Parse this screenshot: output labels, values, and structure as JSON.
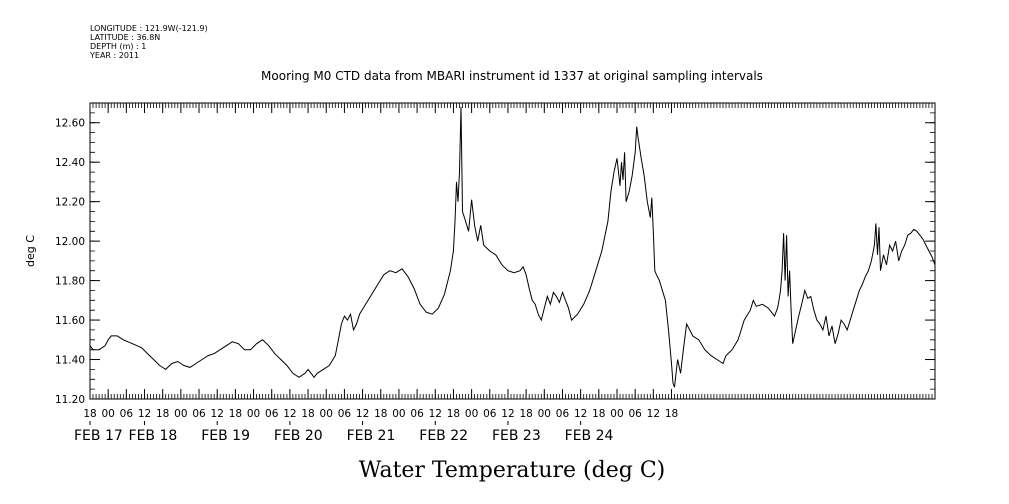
{
  "header": {
    "longitude": "LONGITUDE : 121.9W(-121.9)",
    "latitude": "LATITUDE : 36.8N",
    "depth": "DEPTH (m) : 1",
    "year": "YEAR : 2011"
  },
  "chart_data": {
    "type": "line",
    "title": "Mooring M0 CTD data from MBARI instrument id 1337 at original sampling intervals",
    "subtitle": "Water Temperature (deg C)",
    "ylabel": "deg C",
    "xlabel": "",
    "ylim": [
      11.2,
      12.7
    ],
    "y_ticks": [
      "11.20",
      "11.40",
      "11.60",
      "11.80",
      "12.00",
      "12.20",
      "12.40",
      "12.60"
    ],
    "xlim_hours": [
      -6,
      273
    ],
    "x_ticks": [
      {
        "h": -6,
        "label": "18"
      },
      {
        "h": 0,
        "label": "00"
      },
      {
        "h": 6,
        "label": "06"
      },
      {
        "h": 12,
        "label": "12"
      },
      {
        "h": 18,
        "label": "18"
      },
      {
        "h": 24,
        "label": "00"
      },
      {
        "h": 30,
        "label": "06"
      },
      {
        "h": 36,
        "label": "12"
      },
      {
        "h": 42,
        "label": "18"
      },
      {
        "h": 48,
        "label": "00"
      },
      {
        "h": 54,
        "label": "06"
      },
      {
        "h": 60,
        "label": "12"
      },
      {
        "h": 66,
        "label": "18"
      },
      {
        "h": 72,
        "label": "00"
      },
      {
        "h": 78,
        "label": "06"
      },
      {
        "h": 84,
        "label": "12"
      },
      {
        "h": 90,
        "label": "18"
      },
      {
        "h": 96,
        "label": "00"
      },
      {
        "h": 102,
        "label": "06"
      },
      {
        "h": 108,
        "label": "12"
      },
      {
        "h": 114,
        "label": "18"
      },
      {
        "h": 120,
        "label": "00"
      },
      {
        "h": 126,
        "label": "06"
      },
      {
        "h": 132,
        "label": "12"
      },
      {
        "h": 138,
        "label": "18"
      },
      {
        "h": 144,
        "label": "00"
      },
      {
        "h": 150,
        "label": "06"
      },
      {
        "h": 156,
        "label": "12"
      },
      {
        "h": 162,
        "label": "18"
      },
      {
        "h": 168,
        "label": "00"
      },
      {
        "h": 174,
        "label": "06"
      },
      {
        "h": 180,
        "label": "12"
      },
      {
        "h": 186,
        "label": "18"
      }
    ],
    "date_labels": [
      {
        "h": -6,
        "label": "FEB 17"
      },
      {
        "h": 12,
        "label": "FEB 18"
      },
      {
        "h": 36,
        "label": "FEB 19"
      },
      {
        "h": 60,
        "label": "FEB 20"
      },
      {
        "h": 84,
        "label": "FEB 21"
      },
      {
        "h": 108,
        "label": "FEB 22"
      },
      {
        "h": 132,
        "label": "FEB 23"
      },
      {
        "h": 156,
        "label": "FEB 24"
      }
    ],
    "series": [
      {
        "points": [
          [
            -6,
            11.47
          ],
          [
            -5,
            11.45
          ],
          [
            -3,
            11.45
          ],
          [
            -1,
            11.47
          ],
          [
            0,
            11.5
          ],
          [
            1,
            11.52
          ],
          [
            3,
            11.52
          ],
          [
            5,
            11.5
          ],
          [
            8,
            11.48
          ],
          [
            11,
            11.46
          ],
          [
            13,
            11.43
          ],
          [
            15,
            11.4
          ],
          [
            17,
            11.37
          ],
          [
            19,
            11.35
          ],
          [
            21,
            11.38
          ],
          [
            23,
            11.39
          ],
          [
            25,
            11.37
          ],
          [
            27,
            11.36
          ],
          [
            29,
            11.38
          ],
          [
            31,
            11.4
          ],
          [
            33,
            11.42
          ],
          [
            35,
            11.43
          ],
          [
            37,
            11.45
          ],
          [
            39,
            11.47
          ],
          [
            41,
            11.49
          ],
          [
            43,
            11.48
          ],
          [
            45,
            11.45
          ],
          [
            47,
            11.45
          ],
          [
            49,
            11.48
          ],
          [
            51,
            11.5
          ],
          [
            53,
            11.47
          ],
          [
            55,
            11.43
          ],
          [
            57,
            11.4
          ],
          [
            59,
            11.37
          ],
          [
            61,
            11.33
          ],
          [
            63,
            11.31
          ],
          [
            65,
            11.33
          ],
          [
            66,
            11.35
          ],
          [
            67,
            11.33
          ],
          [
            68,
            11.31
          ],
          [
            69,
            11.33
          ],
          [
            71,
            11.35
          ],
          [
            73,
            11.37
          ],
          [
            75,
            11.42
          ],
          [
            76,
            11.5
          ],
          [
            77,
            11.58
          ],
          [
            78,
            11.62
          ],
          [
            79,
            11.6
          ],
          [
            80,
            11.63
          ],
          [
            81,
            11.55
          ],
          [
            82,
            11.58
          ],
          [
            83,
            11.63
          ],
          [
            85,
            11.68
          ],
          [
            87,
            11.73
          ],
          [
            89,
            11.78
          ],
          [
            91,
            11.83
          ],
          [
            93,
            11.85
          ],
          [
            95,
            11.84
          ],
          [
            97,
            11.86
          ],
          [
            99,
            11.82
          ],
          [
            101,
            11.76
          ],
          [
            103,
            11.68
          ],
          [
            105,
            11.64
          ],
          [
            107,
            11.63
          ],
          [
            109,
            11.66
          ],
          [
            111,
            11.73
          ],
          [
            113,
            11.85
          ],
          [
            114,
            11.95
          ],
          [
            114.5,
            12.1
          ],
          [
            115,
            12.3
          ],
          [
            115.5,
            12.2
          ],
          [
            116,
            12.35
          ],
          [
            116.5,
            12.68
          ],
          [
            117,
            12.15
          ],
          [
            118,
            12.1
          ],
          [
            119,
            12.05
          ],
          [
            120,
            12.21
          ],
          [
            121,
            12.08
          ],
          [
            122,
            12.0
          ],
          [
            123,
            12.08
          ],
          [
            124,
            11.98
          ],
          [
            126,
            11.95
          ],
          [
            128,
            11.93
          ],
          [
            130,
            11.88
          ],
          [
            132,
            11.85
          ],
          [
            134,
            11.84
          ],
          [
            136,
            11.85
          ],
          [
            137,
            11.87
          ],
          [
            138,
            11.83
          ],
          [
            139,
            11.76
          ],
          [
            140,
            11.7
          ],
          [
            141,
            11.68
          ],
          [
            142,
            11.63
          ],
          [
            143,
            11.6
          ],
          [
            144,
            11.66
          ],
          [
            145,
            11.72
          ],
          [
            146,
            11.68
          ],
          [
            147,
            11.74
          ],
          [
            148,
            11.72
          ],
          [
            149,
            11.69
          ],
          [
            150,
            11.74
          ],
          [
            151,
            11.7
          ],
          [
            152,
            11.66
          ],
          [
            153,
            11.6
          ],
          [
            155,
            11.63
          ],
          [
            157,
            11.68
          ],
          [
            159,
            11.75
          ],
          [
            161,
            11.85
          ],
          [
            163,
            11.95
          ],
          [
            165,
            12.1
          ],
          [
            166,
            12.25
          ],
          [
            167,
            12.35
          ],
          [
            168,
            12.42
          ],
          [
            169,
            12.28
          ],
          [
            169.5,
            12.4
          ],
          [
            170,
            12.31
          ],
          [
            170.5,
            12.45
          ],
          [
            171,
            12.2
          ],
          [
            172,
            12.25
          ],
          [
            173,
            12.33
          ],
          [
            174,
            12.45
          ],
          [
            174.5,
            12.58
          ],
          [
            175,
            12.52
          ],
          [
            176,
            12.42
          ],
          [
            177,
            12.33
          ],
          [
            178,
            12.2
          ],
          [
            179,
            12.12
          ],
          [
            179.5,
            12.22
          ],
          [
            180,
            12.05
          ],
          [
            180.5,
            11.85
          ],
          [
            181,
            11.83
          ],
          [
            182,
            11.8
          ],
          [
            183,
            11.75
          ],
          [
            184,
            11.7
          ],
          [
            185,
            11.55
          ],
          [
            186,
            11.38
          ],
          [
            186.5,
            11.28
          ],
          [
            187,
            11.26
          ],
          [
            188,
            11.4
          ],
          [
            189,
            11.33
          ],
          [
            190,
            11.46
          ],
          [
            191,
            11.58
          ],
          [
            192,
            11.55
          ],
          [
            193,
            11.52
          ],
          [
            195,
            11.5
          ],
          [
            197,
            11.45
          ],
          [
            199,
            11.42
          ],
          [
            201,
            11.4
          ],
          [
            203,
            11.38
          ],
          [
            204,
            11.42
          ],
          [
            206,
            11.45
          ],
          [
            208,
            11.5
          ],
          [
            209,
            11.55
          ],
          [
            210,
            11.6
          ],
          [
            212,
            11.65
          ],
          [
            213,
            11.7
          ],
          [
            214,
            11.67
          ],
          [
            216,
            11.68
          ],
          [
            218,
            11.66
          ],
          [
            220,
            11.62
          ],
          [
            221,
            11.66
          ],
          [
            221.5,
            11.7
          ],
          [
            222,
            11.75
          ],
          [
            222.5,
            11.85
          ],
          [
            223,
            12.04
          ],
          [
            223.5,
            11.8
          ],
          [
            224,
            12.03
          ],
          [
            224.5,
            11.72
          ],
          [
            225,
            11.85
          ],
          [
            225.5,
            11.65
          ],
          [
            226,
            11.48
          ],
          [
            227,
            11.55
          ],
          [
            228,
            11.62
          ],
          [
            229,
            11.68
          ],
          [
            230,
            11.75
          ],
          [
            231,
            11.71
          ],
          [
            232,
            11.72
          ],
          [
            233,
            11.65
          ],
          [
            234,
            11.6
          ],
          [
            235,
            11.58
          ],
          [
            236,
            11.55
          ],
          [
            237,
            11.62
          ],
          [
            238,
            11.52
          ],
          [
            239,
            11.57
          ],
          [
            240,
            11.48
          ],
          [
            241,
            11.53
          ],
          [
            242,
            11.6
          ],
          [
            243,
            11.58
          ],
          [
            244,
            11.55
          ],
          [
            245,
            11.6
          ],
          [
            246,
            11.65
          ],
          [
            247,
            11.7
          ],
          [
            248,
            11.75
          ],
          [
            249,
            11.78
          ],
          [
            250,
            11.82
          ],
          [
            251,
            11.85
          ],
          [
            252,
            11.9
          ],
          [
            253,
            11.98
          ],
          [
            253.5,
            12.09
          ],
          [
            254,
            11.93
          ],
          [
            254.5,
            12.07
          ],
          [
            255,
            11.85
          ],
          [
            256,
            11.93
          ],
          [
            257,
            11.88
          ],
          [
            258,
            11.98
          ],
          [
            259,
            11.95
          ],
          [
            260,
            12.0
          ],
          [
            261,
            11.9
          ],
          [
            262,
            11.95
          ],
          [
            263,
            11.98
          ],
          [
            264,
            12.03
          ],
          [
            265,
            12.04
          ],
          [
            266,
            12.06
          ],
          [
            267,
            12.05
          ],
          [
            268,
            12.03
          ],
          [
            269,
            12.01
          ],
          [
            270,
            11.98
          ],
          [
            271,
            11.95
          ],
          [
            272,
            11.92
          ],
          [
            273,
            11.88
          ]
        ]
      }
    ]
  }
}
